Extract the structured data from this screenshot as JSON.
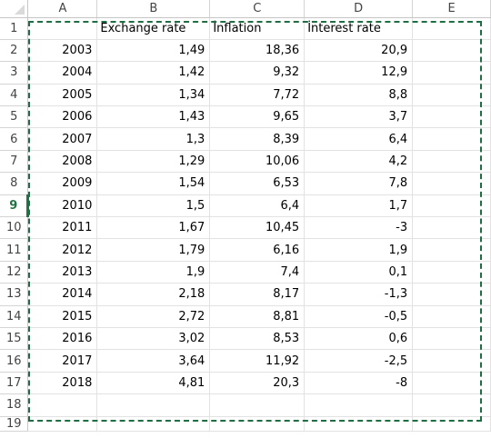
{
  "columns": [
    "A",
    "B",
    "C",
    "D",
    "E"
  ],
  "header_row": {
    "row": "1",
    "a": "",
    "b": "Exchange rate",
    "c": "İnflation",
    "d": "İnterest rate",
    "e": ""
  },
  "rows": [
    {
      "row": "2",
      "a": "2003",
      "b": "1,49",
      "c": "18,36",
      "d": "20,9"
    },
    {
      "row": "3",
      "a": "2004",
      "b": "1,42",
      "c": "9,32",
      "d": "12,9"
    },
    {
      "row": "4",
      "a": "2005",
      "b": "1,34",
      "c": "7,72",
      "d": "8,8"
    },
    {
      "row": "5",
      "a": "2006",
      "b": "1,43",
      "c": "9,65",
      "d": "3,7"
    },
    {
      "row": "6",
      "a": "2007",
      "b": "1,3",
      "c": "8,39",
      "d": "6,4"
    },
    {
      "row": "7",
      "a": "2008",
      "b": "1,29",
      "c": "10,06",
      "d": "4,2"
    },
    {
      "row": "8",
      "a": "2009",
      "b": "1,54",
      "c": "6,53",
      "d": "7,8"
    },
    {
      "row": "9",
      "a": "2010",
      "b": "1,5",
      "c": "6,4",
      "d": "1,7"
    },
    {
      "row": "10",
      "a": "2011",
      "b": "1,67",
      "c": "10,45",
      "d": "-3"
    },
    {
      "row": "11",
      "a": "2012",
      "b": "1,79",
      "c": "6,16",
      "d": "1,9"
    },
    {
      "row": "12",
      "a": "2013",
      "b": "1,9",
      "c": "7,4",
      "d": "0,1"
    },
    {
      "row": "13",
      "a": "2014",
      "b": "2,18",
      "c": "8,17",
      "d": "-1,3"
    },
    {
      "row": "14",
      "a": "2015",
      "b": "2,72",
      "c": "8,81",
      "d": "-0,5"
    },
    {
      "row": "15",
      "a": "2016",
      "b": "3,02",
      "c": "8,53",
      "d": "0,6"
    },
    {
      "row": "16",
      "a": "2017",
      "b": "3,64",
      "c": "11,92",
      "d": "-2,5"
    },
    {
      "row": "17",
      "a": "2018",
      "b": "4,81",
      "c": "20,3",
      "d": "-8"
    }
  ],
  "empty_rows": [
    "18"
  ],
  "partial_row": "19",
  "active_row": "9",
  "colors": {
    "accent": "#217346",
    "marquee": "#1f6e43",
    "gridline": "#e2e2e2"
  }
}
